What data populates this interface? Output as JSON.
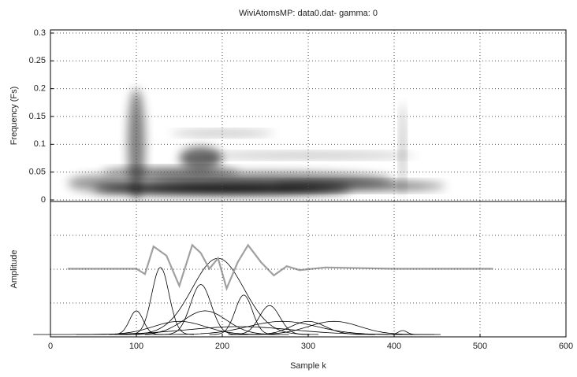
{
  "chart_data": [
    {
      "type": "tfr",
      "title": "WiviAtomsMP: data0.dat- gamma: 0",
      "ylabel": "Frequency (Fs)",
      "ylim": [
        0,
        0.3
      ],
      "yticks": [
        0,
        0.05,
        0.1,
        0.15,
        0.2,
        0.25,
        0.3
      ],
      "grid": true,
      "color": "#000000",
      "x": [
        200,
        140,
        250,
        100,
        175,
        200,
        300,
        410,
        360,
        60
      ],
      "values": [
        0.02,
        0.05,
        0.035,
        0.1,
        0.075,
        0.12,
        0.08,
        0.09,
        0.025,
        0.03
      ],
      "duration": [
        300,
        160,
        300,
        20,
        50,
        120,
        250,
        6,
        200,
        80
      ],
      "bandwidth": [
        0.02,
        0.015,
        0.03,
        0.2,
        0.04,
        0.01,
        0.01,
        0.17,
        0.015,
        0.03
      ],
      "intensity": [
        1,
        0.6,
        0.5,
        0.5,
        0.6,
        0.3,
        0.3,
        0.3,
        0.6,
        0.4
      ]
    },
    {
      "type": "line",
      "xlabel": "Sample k",
      "ylabel": "Amplitude",
      "xlim": [
        0,
        600
      ],
      "xticks": [
        0,
        100,
        200,
        300,
        400,
        500,
        600
      ],
      "ylim": [
        0,
        1
      ],
      "grid": true,
      "series": [
        {
          "color": "#a0a0a0",
          "x": [
            20,
            100,
            110,
            120,
            135,
            150,
            165,
            175,
            185,
            195,
            205,
            218,
            230,
            245,
            260,
            275,
            290,
            320,
            400,
            515
          ],
          "values": [
            0.5,
            0.5,
            0.46,
            0.67,
            0.6,
            0.37,
            0.68,
            0.62,
            0.5,
            0.58,
            0.35,
            0.55,
            0.68,
            0.55,
            0.45,
            0.52,
            0.49,
            0.51,
            0.5,
            0.5
          ]
        }
      ],
      "atoms": {
        "color": "#000000",
        "center": [
          195,
          128,
          175,
          225,
          255,
          100,
          180,
          330,
          300,
          270,
          150,
          410,
          220
        ],
        "width": [
          30,
          10,
          12,
          10,
          12,
          8,
          25,
          30,
          20,
          40,
          30,
          5,
          60
        ],
        "amplitude": [
          0.58,
          0.51,
          0.38,
          0.3,
          0.22,
          0.18,
          0.18,
          0.1,
          0.1,
          0.1,
          0.1,
          0.03,
          0.06
        ]
      }
    }
  ]
}
